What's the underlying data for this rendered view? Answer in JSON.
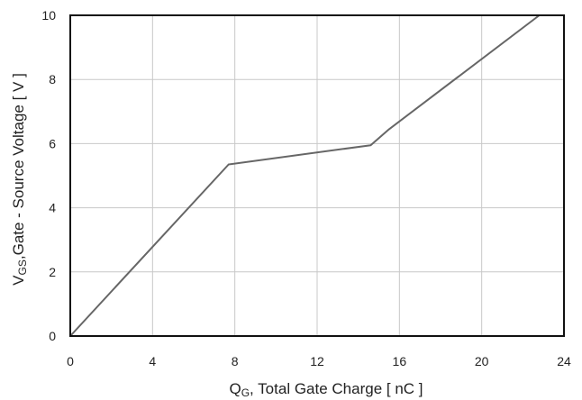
{
  "chart_data": {
    "type": "line",
    "title": "",
    "xlabel": {
      "prefix": "Q",
      "sub": "G",
      "suffix": ", Total Gate Charge [ nC ]"
    },
    "ylabel": {
      "prefix": "V",
      "sub": "GS",
      "suffix": ",Gate - Source Voltage [ V ]"
    },
    "xlim": [
      0,
      24
    ],
    "ylim": [
      0,
      10
    ],
    "xticks": [
      0,
      4,
      8,
      12,
      16,
      20,
      24
    ],
    "yticks": [
      0,
      2,
      4,
      6,
      8,
      10
    ],
    "grid": true,
    "series": [
      {
        "x": [
          0,
          7.7,
          14.6,
          15.5,
          22.8
        ],
        "y": [
          0,
          5.35,
          5.95,
          6.45,
          10.0
        ]
      }
    ],
    "colors": {
      "line": "#666666",
      "grid": "#c8c8c8",
      "frame": "#111111"
    }
  }
}
